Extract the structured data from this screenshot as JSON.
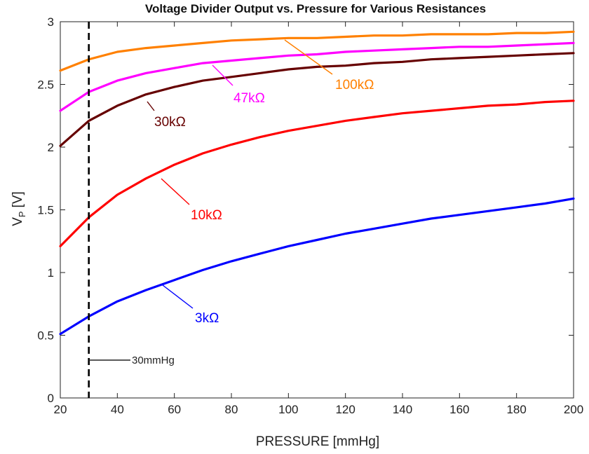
{
  "chart_data": {
    "type": "line",
    "title": "Voltage Divider Output vs. Pressure for Various Resistances",
    "xlabel": "PRESSURE [mmHg]",
    "ylabel_main": "V",
    "ylabel_sub": "P",
    "ylabel_unit": "[V]",
    "xlim": [
      20,
      200
    ],
    "ylim": [
      0,
      3
    ],
    "xticks": [
      20,
      40,
      60,
      80,
      100,
      120,
      140,
      160,
      180,
      200
    ],
    "yticks": [
      0,
      0.5,
      1,
      1.5,
      2,
      2.5,
      3
    ],
    "ytick_labels": [
      "0",
      "0.5",
      "1",
      "1.5",
      "2",
      "2.5",
      "3"
    ],
    "grid": false,
    "x": [
      20,
      30,
      40,
      50,
      60,
      70,
      80,
      90,
      100,
      110,
      120,
      130,
      140,
      150,
      160,
      170,
      180,
      190,
      200
    ],
    "series": [
      {
        "name": "100kΩ",
        "color": "#ff8000",
        "values": [
          2.61,
          2.7,
          2.76,
          2.79,
          2.81,
          2.83,
          2.85,
          2.86,
          2.87,
          2.87,
          2.88,
          2.89,
          2.89,
          2.9,
          2.9,
          2.9,
          2.91,
          2.91,
          2.92
        ]
      },
      {
        "name": "47kΩ",
        "color": "#ff00ff",
        "values": [
          2.29,
          2.44,
          2.53,
          2.59,
          2.63,
          2.67,
          2.69,
          2.71,
          2.73,
          2.74,
          2.76,
          2.77,
          2.78,
          2.79,
          2.8,
          2.8,
          2.81,
          2.82,
          2.83
        ]
      },
      {
        "name": "30kΩ",
        "color": "#660000",
        "values": [
          2.01,
          2.21,
          2.33,
          2.42,
          2.48,
          2.53,
          2.56,
          2.59,
          2.62,
          2.64,
          2.65,
          2.67,
          2.68,
          2.7,
          2.71,
          2.72,
          2.73,
          2.74,
          2.75
        ]
      },
      {
        "name": "10kΩ",
        "color": "#ff0000",
        "values": [
          1.21,
          1.44,
          1.62,
          1.75,
          1.86,
          1.95,
          2.02,
          2.08,
          2.13,
          2.17,
          2.21,
          2.24,
          2.27,
          2.29,
          2.31,
          2.33,
          2.34,
          2.36,
          2.37
        ]
      },
      {
        "name": "3kΩ",
        "color": "#0000ff",
        "values": [
          0.51,
          0.65,
          0.77,
          0.86,
          0.94,
          1.02,
          1.09,
          1.15,
          1.21,
          1.26,
          1.31,
          1.35,
          1.39,
          1.43,
          1.46,
          1.49,
          1.52,
          1.55,
          1.59
        ]
      }
    ],
    "vline": {
      "x": 30,
      "label": "30mmHg",
      "color": "#000000"
    }
  }
}
